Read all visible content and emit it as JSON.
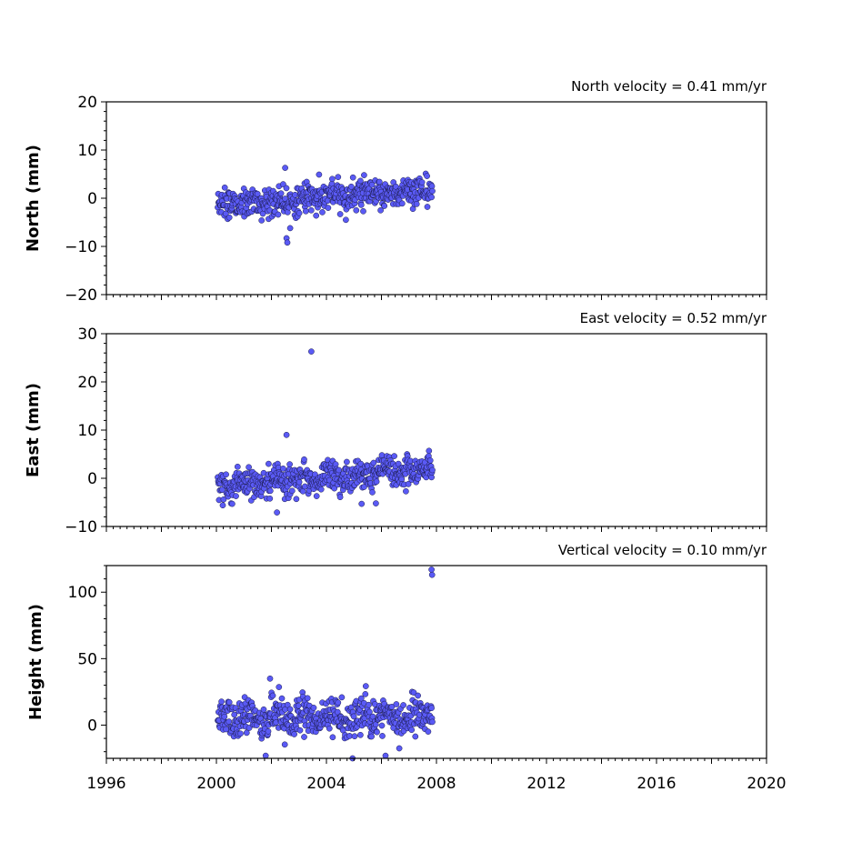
{
  "chart_data": [
    {
      "type": "scatter",
      "title": "North velocity = 0.41 mm/yr",
      "ylabel": "North (mm)",
      "ylim": [
        -20,
        20
      ],
      "yticks": [
        -20,
        -10,
        0,
        10,
        20
      ],
      "xlim": [
        1996,
        2020
      ],
      "marker_color": "#5a5af5",
      "points": []
    },
    {
      "type": "scatter",
      "title": "East velocity = 0.52 mm/yr",
      "ylabel": "East (mm)",
      "ylim": [
        -10,
        30
      ],
      "yticks": [
        -10,
        0,
        10,
        20,
        30
      ],
      "xlim": [
        1996,
        2020
      ],
      "marker_color": "#5a5af5",
      "points": []
    },
    {
      "type": "scatter",
      "title": "Vertical velocity = 0.10 mm/yr",
      "ylabel": "Height (mm)",
      "ylim": [
        -25,
        120
      ],
      "yticks": [
        0,
        50,
        100
      ],
      "xlim": [
        1996,
        2020
      ],
      "marker_color": "#5a5af5",
      "points": []
    }
  ],
  "x_axis": {
    "xlim": [
      1996,
      2020
    ],
    "ticks": [
      "1996",
      "1998",
      "2000",
      "2002",
      "2004",
      "2006",
      "2008",
      "2010",
      "2012",
      "2014",
      "2016",
      "2018",
      "2020"
    ],
    "labels": [
      "1996",
      "",
      "2000",
      "",
      "2004",
      "",
      "2008",
      "",
      "2012",
      "",
      "2016",
      "",
      "2020"
    ]
  }
}
